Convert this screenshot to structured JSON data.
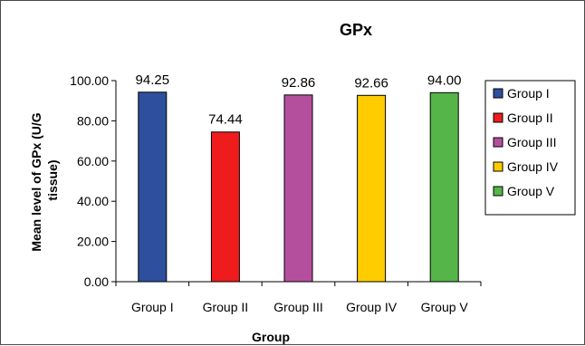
{
  "chart_data": {
    "type": "bar",
    "title": "GPx",
    "xlabel": "Group",
    "ylabel": "Mean level of GPx (U/G tissue)",
    "categories": [
      "Group I",
      "Group II",
      "Group III",
      "Group IV",
      "Group V"
    ],
    "values": [
      94.25,
      74.44,
      92.86,
      92.66,
      94.0
    ],
    "value_labels": [
      "94.25",
      "74.44",
      "92.86",
      "92.66",
      "94.00"
    ],
    "colors": [
      "#2e4f9e",
      "#ee1c1c",
      "#b44f9e",
      "#ffcc00",
      "#55b548"
    ],
    "ylim": [
      0,
      100
    ],
    "yticks": [
      "0.00",
      "20.00",
      "40.00",
      "60.00",
      "80.00",
      "100.00"
    ],
    "grid": false,
    "legend": {
      "placement": "right",
      "entries": [
        "Group I",
        "Group II",
        "Group III",
        "Group IV",
        "Group V"
      ]
    }
  }
}
